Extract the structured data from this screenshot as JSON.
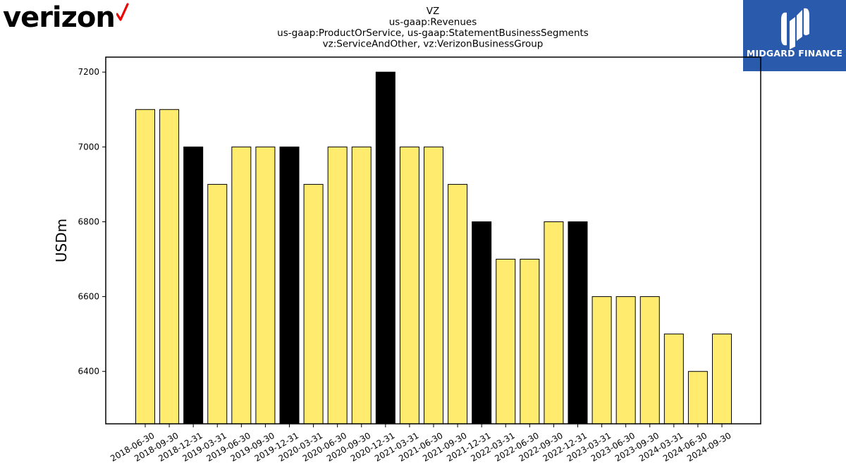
{
  "logos": {
    "left_brand": "verizon",
    "right_brand": "MIDGARD FINANCE"
  },
  "colors": {
    "bar_regular": "#ffec6e",
    "bar_quarter_end_q4": "#000000",
    "logo_check": "#ee0000",
    "midgard_bg": "#2a5aab"
  },
  "chart_data": {
    "type": "bar",
    "title_lines": [
      "VZ",
      "us-gaap:Revenues",
      "us-gaap:ProductOrService, us-gaap:StatementBusinessSegments",
      "vz:ServiceAndOther, vz:VerizonBusinessGroup"
    ],
    "xlabel": "",
    "ylabel": "USDm",
    "ylim": [
      6260,
      7240
    ],
    "yticks": [
      6400,
      6600,
      6800,
      7000,
      7200
    ],
    "grid": false,
    "legend": "none",
    "categories": [
      "2018-06-30",
      "2018-09-30",
      "2018-12-31",
      "2019-03-31",
      "2019-06-30",
      "2019-09-30",
      "2019-12-31",
      "2020-03-31",
      "2020-06-30",
      "2020-09-30",
      "2020-12-31",
      "2021-03-31",
      "2021-06-30",
      "2021-09-30",
      "2021-12-31",
      "2022-03-31",
      "2022-06-30",
      "2022-09-30",
      "2022-12-31",
      "2023-03-31",
      "2023-06-30",
      "2023-09-30",
      "2024-03-31",
      "2024-06-30",
      "2024-09-30"
    ],
    "values": [
      7100,
      7100,
      7000,
      6900,
      7000,
      7000,
      7000,
      6900,
      7000,
      7000,
      7200,
      7000,
      7000,
      6900,
      6800,
      6700,
      6700,
      6800,
      6800,
      6600,
      6600,
      6600,
      6500,
      6400,
      6500
    ],
    "highlight": [
      false,
      false,
      true,
      false,
      false,
      false,
      true,
      false,
      false,
      false,
      true,
      false,
      false,
      false,
      true,
      false,
      false,
      false,
      true,
      false,
      false,
      false,
      false,
      false,
      false
    ]
  }
}
